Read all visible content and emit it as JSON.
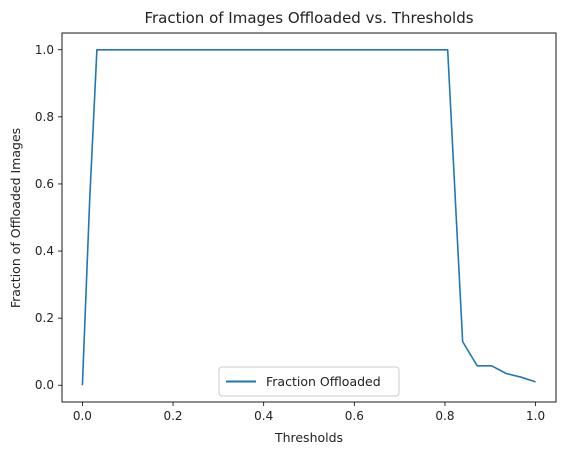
{
  "chart_data": {
    "type": "line",
    "title": "Fraction of Images Offloaded vs. Thresholds",
    "xlabel": "Thresholds",
    "ylabel": "Fraction of Offloaded Images",
    "xlim": [
      -0.045,
      1.045
    ],
    "ylim": [
      -0.05,
      1.05
    ],
    "x_ticks": [
      0.0,
      0.2,
      0.4,
      0.6,
      0.8,
      1.0
    ],
    "x_tick_labels": [
      "0.0",
      "0.2",
      "0.4",
      "0.6",
      "0.8",
      "1.0"
    ],
    "y_ticks": [
      0.0,
      0.2,
      0.4,
      0.6,
      0.8,
      1.0
    ],
    "y_tick_labels": [
      "0.0",
      "0.2",
      "0.4",
      "0.6",
      "0.8",
      "1.0"
    ],
    "grid": false,
    "legend_position": "bottom-center",
    "series": [
      {
        "name": "Fraction Offloaded",
        "color": "#1f77b4",
        "x": [
          0.0,
          0.016,
          0.032,
          0.1,
          0.2,
          0.3,
          0.4,
          0.5,
          0.6,
          0.7,
          0.806,
          0.823,
          0.839,
          0.871,
          0.903,
          0.935,
          0.968,
          1.0
        ],
        "y": [
          0.0,
          0.55,
          1.0,
          1.0,
          1.0,
          1.0,
          1.0,
          1.0,
          1.0,
          1.0,
          1.0,
          0.55,
          0.13,
          0.058,
          0.058,
          0.035,
          0.024,
          0.01
        ]
      }
    ]
  }
}
